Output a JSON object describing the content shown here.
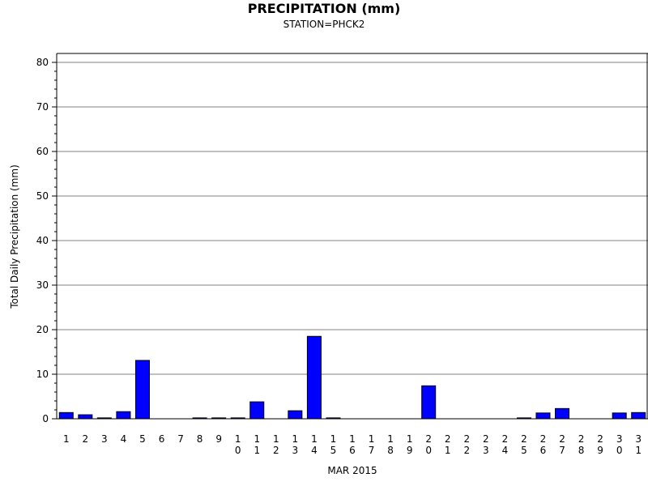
{
  "chart_data": {
    "type": "bar",
    "title": "PRECIPITATION (mm)",
    "subtitle": "STATION=PHCK2",
    "xlabel": "MAR 2015",
    "ylabel": "Total Daily Precipitation (mm)",
    "ylim": [
      0,
      80
    ],
    "yticks": [
      0,
      10,
      20,
      30,
      40,
      50,
      60,
      70,
      80
    ],
    "grid": true,
    "categories": [
      "1",
      "2",
      "3",
      "4",
      "5",
      "6",
      "7",
      "8",
      "9",
      "10",
      "11",
      "12",
      "13",
      "14",
      "15",
      "16",
      "17",
      "18",
      "19",
      "20",
      "21",
      "22",
      "23",
      "24",
      "25",
      "26",
      "27",
      "28",
      "29",
      "30",
      "31"
    ],
    "values": [
      1.4,
      0.9,
      0.2,
      1.6,
      13.1,
      0,
      0,
      0.2,
      0.2,
      0.2,
      3.8,
      0,
      1.8,
      18.5,
      0.2,
      0,
      0,
      0,
      0,
      7.4,
      0,
      0,
      0,
      0,
      0.2,
      1.3,
      2.3,
      0,
      0,
      1.3,
      1.4
    ],
    "bar_color": "#0000ff"
  }
}
